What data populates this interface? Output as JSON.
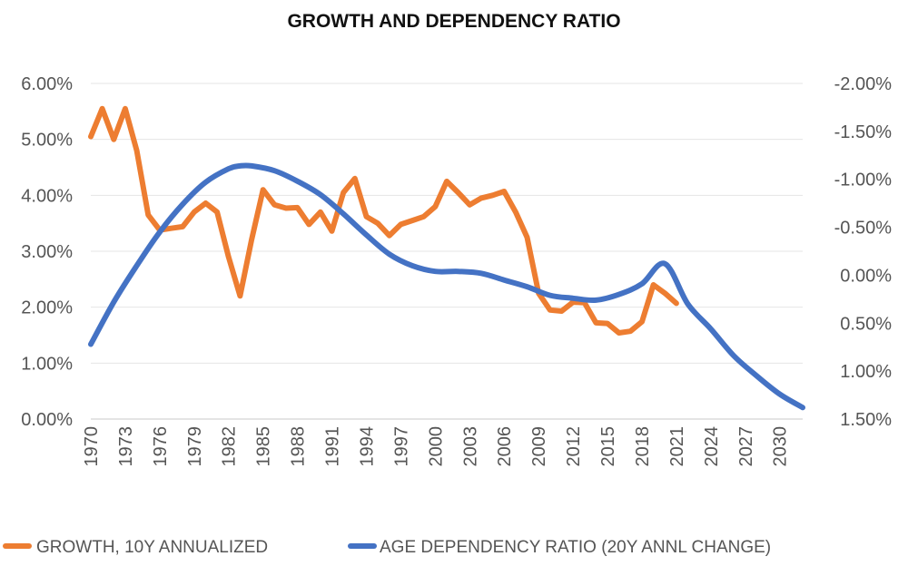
{
  "chart_data": {
    "type": "line",
    "title": "GROWTH AND DEPENDENCY RATIO",
    "xlabel": "",
    "ylabel": "",
    "x_tick_labels": [
      "1970",
      "1973",
      "1976",
      "1979",
      "1982",
      "1985",
      "1988",
      "1991",
      "1994",
      "1997",
      "2000",
      "2003",
      "2006",
      "2009",
      "2012",
      "2015",
      "2018",
      "2021",
      "2024",
      "2027",
      "2030"
    ],
    "x_range": [
      1970,
      2032
    ],
    "y_left": {
      "min": 0,
      "max": 6,
      "step": 1,
      "format": "percent",
      "tick_labels": [
        "0.00%",
        "1.00%",
        "2.00%",
        "3.00%",
        "4.00%",
        "5.00%",
        "6.00%"
      ]
    },
    "y_right": {
      "top": -2.0,
      "bottom": 1.5,
      "inverted": true,
      "format": "percent",
      "tick_labels": [
        "-2.00%",
        "-1.50%",
        "-1.00%",
        "-0.50%",
        "0.00%",
        "0.50%",
        "1.00%",
        "1.50%"
      ]
    },
    "grid": true,
    "legend_position": "bottom",
    "colors": {
      "growth": "#ED7D31",
      "dependency": "#4472C4"
    },
    "series": [
      {
        "name": "GROWTH, 10Y ANNUALIZED",
        "axis": "left",
        "color": "#ED7D31",
        "x": [
          1970,
          1971,
          1972,
          1973,
          1974,
          1975,
          1976,
          1977,
          1978,
          1979,
          1980,
          1981,
          1982,
          1983,
          1984,
          1985,
          1986,
          1987,
          1988,
          1989,
          1990,
          1991,
          1992,
          1993,
          1994,
          1995,
          1996,
          1997,
          1998,
          1999,
          2000,
          2001,
          2002,
          2003,
          2004,
          2005,
          2006,
          2007,
          2008,
          2009,
          2010,
          2011,
          2012,
          2013,
          2014,
          2015,
          2016,
          2017,
          2018,
          2019,
          2020,
          2021
        ],
        "values": [
          5.05,
          5.55,
          5.0,
          5.55,
          4.8,
          3.65,
          3.38,
          3.41,
          3.44,
          3.7,
          3.86,
          3.7,
          2.9,
          2.2,
          3.2,
          4.1,
          3.83,
          3.77,
          3.78,
          3.48,
          3.7,
          3.36,
          4.05,
          4.3,
          3.62,
          3.5,
          3.28,
          3.48,
          3.55,
          3.62,
          3.8,
          4.25,
          4.05,
          3.83,
          3.95,
          4.0,
          4.07,
          3.7,
          3.25,
          2.25,
          1.95,
          1.93,
          2.09,
          2.08,
          1.72,
          1.71,
          1.54,
          1.57,
          1.74,
          2.4,
          2.25,
          2.07
        ]
      },
      {
        "name": "AGE DEPENDENCY RATIO (20Y ANNL CHANGE)",
        "axis": "right",
        "color": "#4472C4",
        "x": [
          1970,
          1972,
          1974,
          1976,
          1978,
          1980,
          1982,
          1983,
          1984,
          1986,
          1988,
          1990,
          1992,
          1994,
          1996,
          1998,
          2000,
          2002,
          2004,
          2006,
          2008,
          2010,
          2012,
          2014,
          2016,
          2018,
          2020,
          2022,
          2024,
          2026,
          2028,
          2030,
          2032
        ],
        "values": [
          0.72,
          0.28,
          -0.1,
          -0.45,
          -0.74,
          -0.97,
          -1.11,
          -1.14,
          -1.14,
          -1.09,
          -0.98,
          -0.84,
          -0.64,
          -0.42,
          -0.22,
          -0.1,
          -0.04,
          -0.04,
          -0.02,
          0.05,
          0.12,
          0.21,
          0.24,
          0.26,
          0.2,
          0.09,
          -0.12,
          0.3,
          0.56,
          0.84,
          1.05,
          1.24,
          1.38
        ]
      }
    ]
  }
}
